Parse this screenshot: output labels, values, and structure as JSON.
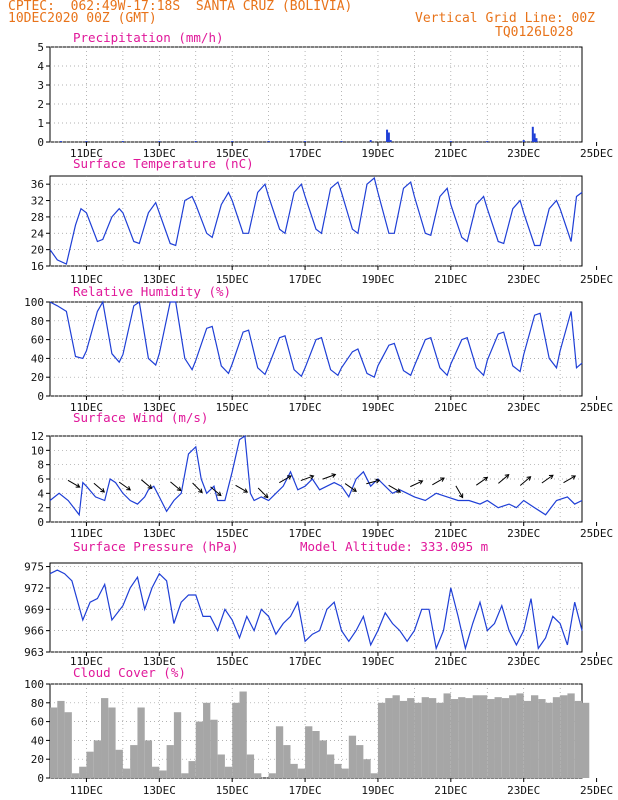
{
  "header": {
    "line1": "CPTEC:  062:49W-17:18S  SANTA CRUZ (BOLIVIA)",
    "line2": "10DEC2020 00Z (GMT)",
    "grid_note": "Vertical Grid Line: 00Z",
    "code": "TQ0126L028"
  },
  "colors": {
    "line": "#1f3fd6",
    "title": "#e0189a",
    "header": "#e8731a",
    "cloud": "#a6a6a6",
    "arrow": "#000000"
  },
  "x_ticks": [
    "11DEC",
    "13DEC",
    "15DEC",
    "17DEC",
    "19DEC",
    "21DEC",
    "23DEC",
    "25DEC"
  ],
  "chart_data": [
    {
      "type": "bar",
      "title": "Precipitation (mm/h)",
      "ylim": [
        0,
        5
      ],
      "yticks": [
        "0",
        "1",
        "2",
        "3",
        "4",
        "5"
      ],
      "x_days": [
        0.3,
        1.0,
        2.0,
        3.0,
        4.0,
        5.0,
        6.0,
        7.0,
        8.0,
        8.8,
        9.25,
        9.3,
        9.35,
        11.0,
        12.0,
        13.0,
        13.25,
        13.3,
        13.35
      ],
      "values": [
        0.05,
        0.05,
        0.05,
        0.05,
        0.05,
        0.05,
        0.05,
        0.05,
        0.05,
        0.1,
        0.65,
        0.5,
        0.1,
        0.05,
        0.05,
        0.1,
        0.8,
        0.45,
        0.2
      ]
    },
    {
      "type": "line",
      "title": "Surface Temperature (nC)",
      "ylim": [
        16,
        38
      ],
      "yticks": [
        "16",
        "20",
        "24",
        "28",
        "32",
        "36"
      ],
      "x_days": [
        0,
        0.2,
        0.45,
        0.7,
        0.85,
        1.0,
        1.3,
        1.45,
        1.7,
        1.9,
        2.0,
        2.3,
        2.45,
        2.7,
        2.9,
        3.0,
        3.3,
        3.45,
        3.7,
        3.9,
        4.0,
        4.3,
        4.45,
        4.7,
        4.9,
        5.0,
        5.3,
        5.45,
        5.7,
        5.9,
        6.0,
        6.3,
        6.45,
        6.7,
        6.9,
        7.0,
        7.3,
        7.45,
        7.7,
        7.9,
        8.0,
        8.3,
        8.45,
        8.7,
        8.9,
        9.0,
        9.3,
        9.45,
        9.7,
        9.9,
        10.0,
        10.3,
        10.45,
        10.7,
        10.9,
        11.0,
        11.3,
        11.45,
        11.7,
        11.9,
        12.0,
        12.3,
        12.45,
        12.7,
        12.9,
        13.0,
        13.3,
        13.45,
        13.7,
        13.9,
        14.0,
        14.3,
        14.45,
        14.6
      ],
      "values": [
        20,
        17.5,
        16.5,
        26,
        30,
        29,
        22,
        22.5,
        28,
        30,
        29,
        22,
        21.5,
        29,
        31.5,
        29,
        21.5,
        21,
        32,
        33,
        31,
        24,
        23,
        31,
        34,
        32,
        24,
        24,
        34,
        36,
        33,
        25,
        24,
        34,
        36,
        33,
        25,
        24,
        35,
        36.5,
        34,
        25,
        24,
        36,
        37.5,
        34,
        24,
        24,
        35,
        36.5,
        33,
        24,
        23.5,
        33,
        35,
        31,
        23,
        22,
        31,
        33,
        30,
        22,
        21.5,
        30,
        32,
        29,
        21,
        21,
        30,
        32,
        30,
        22,
        33,
        34
      ]
    },
    {
      "type": "line",
      "title": "Relative Humidity (%)",
      "ylim": [
        0,
        100
      ],
      "yticks": [
        "0",
        "20",
        "40",
        "60",
        "80",
        "100"
      ],
      "x_days": [
        0,
        0.2,
        0.45,
        0.7,
        0.9,
        1.0,
        1.3,
        1.45,
        1.7,
        1.9,
        2.0,
        2.3,
        2.45,
        2.7,
        2.9,
        3.0,
        3.3,
        3.45,
        3.7,
        3.9,
        4.0,
        4.3,
        4.45,
        4.7,
        4.9,
        5.0,
        5.3,
        5.45,
        5.7,
        5.9,
        6.0,
        6.3,
        6.45,
        6.7,
        6.9,
        7.0,
        7.3,
        7.45,
        7.7,
        7.9,
        8.0,
        8.3,
        8.45,
        8.7,
        8.9,
        9.0,
        9.3,
        9.45,
        9.7,
        9.9,
        10.0,
        10.3,
        10.45,
        10.7,
        10.9,
        11.0,
        11.3,
        11.45,
        11.7,
        11.9,
        12.0,
        12.3,
        12.45,
        12.7,
        12.9,
        13.0,
        13.3,
        13.45,
        13.7,
        13.9,
        14.0,
        14.3,
        14.45,
        14.6
      ],
      "values": [
        100,
        96,
        90,
        42,
        40,
        48,
        90,
        100,
        45,
        36,
        44,
        96,
        100,
        40,
        33,
        45,
        100,
        100,
        40,
        28,
        38,
        72,
        74,
        32,
        24,
        34,
        68,
        70,
        30,
        23,
        32,
        62,
        64,
        28,
        21,
        30,
        60,
        62,
        28,
        22,
        30,
        47,
        50,
        24,
        20,
        32,
        54,
        56,
        27,
        22,
        32,
        60,
        62,
        30,
        22,
        34,
        60,
        62,
        30,
        22,
        38,
        66,
        68,
        32,
        26,
        44,
        86,
        88,
        40,
        30,
        48,
        90,
        30,
        35
      ]
    },
    {
      "type": "line",
      "title": "Surface Wind (m/s)",
      "ylim": [
        0,
        12
      ],
      "yticks": [
        "0",
        "2",
        "4",
        "6",
        "8",
        "10",
        "12"
      ],
      "x_days": [
        0,
        0.25,
        0.5,
        0.8,
        0.9,
        1.0,
        1.25,
        1.5,
        1.65,
        1.8,
        2.0,
        2.2,
        2.4,
        2.6,
        2.7,
        2.85,
        3.0,
        3.2,
        3.4,
        3.6,
        3.8,
        4.0,
        4.15,
        4.3,
        4.5,
        4.6,
        4.8,
        5.0,
        5.2,
        5.35,
        5.5,
        5.6,
        5.8,
        6.0,
        6.2,
        6.4,
        6.6,
        6.8,
        7.0,
        7.2,
        7.4,
        7.6,
        7.8,
        8.0,
        8.2,
        8.4,
        8.6,
        8.8,
        9.0,
        9.2,
        9.4,
        9.6,
        9.8,
        10.0,
        10.3,
        10.6,
        10.9,
        11.2,
        11.5,
        11.8,
        12.0,
        12.3,
        12.6,
        12.8,
        13.0,
        13.3,
        13.6,
        13.9,
        14.2,
        14.4,
        14.6
      ],
      "values": [
        3,
        4,
        3,
        1,
        5.5,
        5,
        3.5,
        3,
        6,
        5.5,
        4,
        3,
        2.5,
        3.5,
        4.5,
        5,
        3.5,
        1.5,
        3,
        4,
        9.5,
        10.5,
        6,
        4,
        5,
        3,
        3,
        7,
        11.5,
        12,
        4,
        3,
        3.5,
        3,
        4,
        5,
        7,
        4.5,
        5,
        6,
        4.5,
        5,
        5.5,
        5,
        3.5,
        6,
        7,
        5,
        6,
        5,
        4,
        4.5,
        4,
        3.5,
        3,
        4,
        3.5,
        3,
        3,
        2.5,
        3,
        2,
        2.5,
        2,
        3,
        2,
        1,
        3,
        3.5,
        2.5,
        3
      ]
    },
    {
      "type": "line",
      "title": "Surface Pressure (hPa)",
      "subtitle": "Model Altitude: 333.095 m",
      "ylim": [
        963,
        975.5
      ],
      "yticks": [
        "963",
        "966",
        "969",
        "972",
        "975"
      ],
      "x_days": [
        0,
        0.2,
        0.4,
        0.6,
        0.9,
        1.1,
        1.3,
        1.5,
        1.7,
        2.0,
        2.2,
        2.4,
        2.6,
        2.8,
        3.0,
        3.2,
        3.4,
        3.6,
        3.8,
        4.0,
        4.2,
        4.4,
        4.6,
        4.8,
        5.0,
        5.2,
        5.4,
        5.6,
        5.8,
        6.0,
        6.2,
        6.4,
        6.6,
        6.8,
        7.0,
        7.2,
        7.4,
        7.6,
        7.8,
        8.0,
        8.2,
        8.4,
        8.6,
        8.8,
        9.0,
        9.2,
        9.4,
        9.6,
        9.8,
        10.0,
        10.2,
        10.4,
        10.6,
        10.8,
        11.0,
        11.2,
        11.4,
        11.6,
        11.8,
        12.0,
        12.2,
        12.4,
        12.6,
        12.8,
        13.0,
        13.2,
        13.4,
        13.6,
        13.8,
        14.0,
        14.2,
        14.4,
        14.6
      ],
      "values": [
        974,
        974.5,
        974,
        973,
        967.5,
        970,
        970.5,
        972.5,
        967.5,
        969.5,
        972,
        973.5,
        969,
        972,
        974,
        973,
        967,
        970,
        971,
        971,
        968,
        968,
        966,
        969,
        967.5,
        965,
        968,
        966,
        969,
        968,
        965.5,
        967,
        968,
        970,
        964.5,
        965.5,
        966,
        969,
        970,
        966,
        964.5,
        966,
        968,
        964,
        966,
        968.5,
        967,
        966,
        964.5,
        966,
        969,
        969,
        963.5,
        966,
        972,
        968,
        963.5,
        967,
        970,
        966,
        967,
        969.5,
        966,
        964,
        966,
        970.5,
        963.5,
        965,
        968,
        967,
        964,
        970,
        966
      ]
    },
    {
      "type": "bar",
      "title": "Cloud Cover (%)",
      "ylim": [
        0,
        100
      ],
      "yticks": [
        "0",
        "20",
        "40",
        "60",
        "80",
        "100"
      ],
      "x_days": [
        0,
        0.2,
        0.4,
        0.6,
        0.8,
        1.0,
        1.2,
        1.4,
        1.6,
        1.8,
        2.0,
        2.2,
        2.4,
        2.6,
        2.8,
        3.0,
        3.2,
        3.4,
        3.6,
        3.8,
        4.0,
        4.2,
        4.4,
        4.6,
        4.8,
        5.0,
        5.2,
        5.4,
        5.6,
        5.8,
        6.0,
        6.2,
        6.4,
        6.6,
        6.8,
        7.0,
        7.2,
        7.4,
        7.6,
        7.8,
        8.0,
        8.2,
        8.4,
        8.6,
        8.8,
        9.0,
        9.2,
        9.4,
        9.6,
        9.8,
        10.0,
        10.2,
        10.4,
        10.6,
        10.8,
        11.0,
        11.2,
        11.4,
        11.6,
        11.8,
        12.0,
        12.2,
        12.4,
        12.6,
        12.8,
        13.0,
        13.2,
        13.4,
        13.6,
        13.8,
        14.0,
        14.2,
        14.4,
        14.6
      ],
      "values": [
        75,
        82,
        70,
        5,
        12,
        28,
        40,
        85,
        75,
        30,
        10,
        35,
        75,
        40,
        12,
        8,
        35,
        70,
        5,
        18,
        60,
        80,
        62,
        25,
        12,
        80,
        92,
        25,
        5,
        0,
        5,
        55,
        35,
        15,
        10,
        55,
        50,
        40,
        25,
        15,
        10,
        45,
        35,
        20,
        5,
        80,
        85,
        88,
        82,
        85,
        80,
        86,
        85,
        80,
        90,
        84,
        86,
        85,
        88,
        88,
        84,
        86,
        85,
        88,
        90,
        82,
        88,
        84,
        80,
        86,
        88,
        90,
        82,
        80
      ]
    }
  ]
}
